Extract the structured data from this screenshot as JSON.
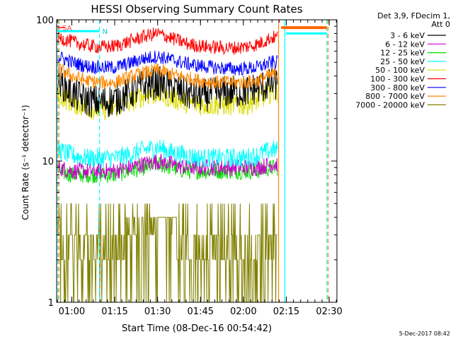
{
  "chart_data": {
    "type": "line",
    "title": "HESSI Observing Summary Count Rates",
    "xlabel": "Start Time (08-Dec-16 00:54:42)",
    "ylabel": "Count Rate (s⁻¹ detector⁻¹)",
    "yscale": "log",
    "ylim": [
      1,
      100
    ],
    "xlim_minutes": [
      0,
      98
    ],
    "x_start": "00:54:42",
    "x_ticks": [
      {
        "label": "01:00",
        "minutes": 5.3
      },
      {
        "label": "01:15",
        "minutes": 20.3
      },
      {
        "label": "01:30",
        "minutes": 35.3
      },
      {
        "label": "01:45",
        "minutes": 50.3
      },
      {
        "label": "02:00",
        "minutes": 65.3
      },
      {
        "label": "02:15",
        "minutes": 80.3
      },
      {
        "label": "02:30",
        "minutes": 95.3
      }
    ],
    "y_ticks": [
      {
        "label": "1",
        "value": 1
      },
      {
        "label": "10",
        "value": 10
      },
      {
        "label": "100",
        "value": 100
      }
    ],
    "legend_header": [
      "Det 3,9, FDecim 1,",
      "Att 0"
    ],
    "legend_position": "right",
    "x": [
      "00:55",
      "01:00",
      "01:05",
      "01:10",
      "01:15",
      "01:20",
      "01:25",
      "01:30",
      "01:35",
      "01:40",
      "01:45",
      "01:50",
      "01:55",
      "02:00",
      "02:05",
      "02:10"
    ],
    "series": [
      {
        "name": "3 - 6 keV",
        "color": "#000000",
        "values": [
          38,
          30,
          27,
          26,
          27,
          30,
          34,
          36,
          33,
          30,
          29,
          30,
          31,
          31,
          33,
          35
        ]
      },
      {
        "name": "6 - 12 keV",
        "color": "#cc00cc",
        "values": [
          9,
          8.5,
          8.5,
          8.5,
          8.5,
          9,
          9.5,
          10,
          9.5,
          9,
          9,
          9,
          9,
          9,
          9,
          9.5
        ]
      },
      {
        "name": "12 - 25 keV",
        "color": "#00dd00",
        "values": [
          8.5,
          8,
          8,
          8,
          8,
          8.5,
          9,
          9.5,
          9,
          8.5,
          8.5,
          8.5,
          8.5,
          8.5,
          8.5,
          9
        ]
      },
      {
        "name": "25 - 50 keV",
        "color": "#00ffff",
        "values": [
          12,
          11,
          10.5,
          10.5,
          10.5,
          11,
          12,
          12.5,
          11.5,
          11,
          10.5,
          10.5,
          10.5,
          10.5,
          11,
          12
        ]
      },
      {
        "name": "50 - 100 keV",
        "color": "#dddd00",
        "values": [
          30,
          26,
          24,
          23,
          24,
          26,
          29,
          30,
          28,
          26,
          25,
          25,
          25,
          25,
          27,
          31
        ]
      },
      {
        "name": "100 - 300 keV",
        "color": "#ff0000",
        "values": [
          75,
          70,
          66,
          64,
          65,
          70,
          76,
          80,
          74,
          68,
          65,
          64,
          63,
          64,
          67,
          75
        ]
      },
      {
        "name": "300 - 800 keV",
        "color": "#0000ff",
        "values": [
          55,
          50,
          47,
          46,
          46,
          49,
          53,
          55,
          52,
          49,
          47,
          46,
          45,
          45,
          46,
          50
        ]
      },
      {
        "name": "800 - 7000 keV",
        "color": "#ff8800",
        "values": [
          45,
          40,
          37,
          36,
          36,
          39,
          42,
          44,
          41,
          39,
          37,
          36,
          36,
          36,
          37,
          41
        ]
      },
      {
        "name": "7000 - 20000 keV",
        "color": "#808000",
        "values": [
          3.5,
          2.8,
          3,
          2.5,
          2.8,
          3.5,
          4,
          3.8,
          3,
          2.8,
          3,
          3,
          3,
          2.8,
          3,
          3
        ]
      }
    ],
    "annotations": [
      {
        "text": "N",
        "minutes": 15.5,
        "value": 83,
        "color": "#00cccc"
      },
      {
        "text": "SA",
        "minutes": 1.5,
        "value": 88,
        "color": "#ff4040"
      }
    ],
    "timestamp": "5-Dec-2017 08:42"
  }
}
